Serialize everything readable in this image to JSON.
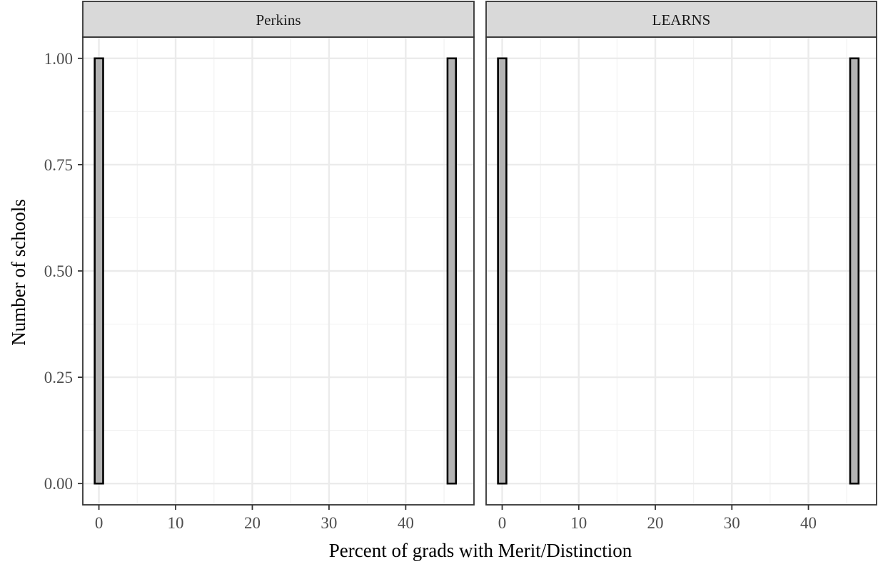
{
  "chart_data": {
    "type": "bar",
    "subtype": "histogram",
    "xlabel": "Percent of grads with Merit/Distinction",
    "ylabel": "Number of schools",
    "xlim": [
      -2.1,
      48.9
    ],
    "ylim": [
      -0.05,
      1.05
    ],
    "x_ticks": [
      0,
      10,
      20,
      30,
      40
    ],
    "y_ticks": [
      0.0,
      0.25,
      0.5,
      0.75,
      1.0
    ],
    "y_tick_labels": [
      "0.00",
      "0.25",
      "0.50",
      "0.75",
      "1.00"
    ],
    "grid": true,
    "bin_width": 1.1,
    "bar_fill": "#b3b3b3",
    "bar_outline": "#000000",
    "strip_fill": "#d9d9d9",
    "panels": [
      {
        "name": "Perkins",
        "bins": [
          {
            "x": 0.0,
            "count": 1
          },
          {
            "x": 46.0,
            "count": 1
          }
        ]
      },
      {
        "name": "LEARNS",
        "bins": [
          {
            "x": 0.0,
            "count": 1
          },
          {
            "x": 46.0,
            "count": 1
          }
        ]
      }
    ]
  }
}
